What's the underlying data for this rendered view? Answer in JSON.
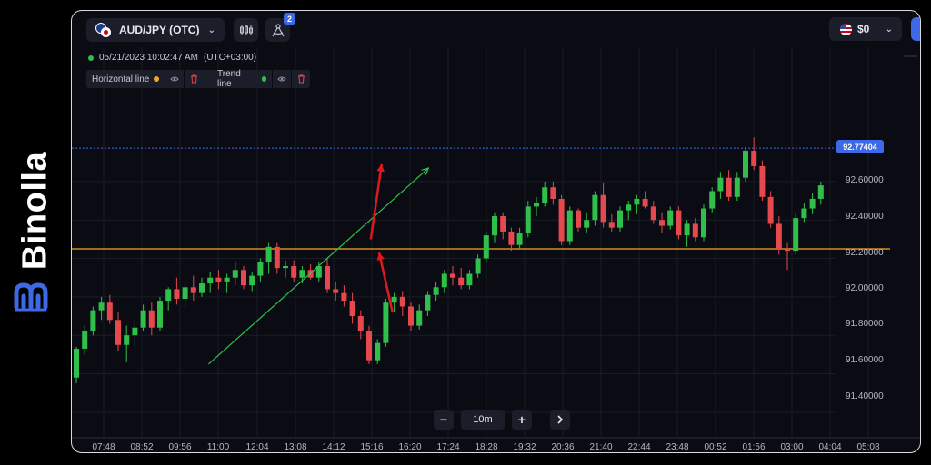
{
  "brand": {
    "name": "Binolla"
  },
  "toolbar": {
    "pair_label": "AUD/JPY (OTC)",
    "indicators_badge": "2",
    "balance": "$0"
  },
  "session": {
    "datetime": "05/21/2023 10:02:47 AM",
    "timezone": "(UTC+03:00)"
  },
  "drawings": [
    {
      "label": "Horizontal line",
      "color": "#f5a623"
    },
    {
      "label": "Trend line",
      "color": "#2fbf4a"
    }
  ],
  "price_axis": {
    "current_price": "92.77404",
    "ticks": [
      "92.60000",
      "92.40000",
      "92.20000",
      "92.00000",
      "91.80000",
      "91.60000",
      "91.40000"
    ]
  },
  "time_axis": {
    "ticks": [
      "07:48",
      "08:52",
      "09:56",
      "11:00",
      "12:04",
      "13:08",
      "14:12",
      "15:16",
      "16:20",
      "17:24",
      "18:28",
      "19:32",
      "20:36",
      "21:40",
      "22:44",
      "23:48",
      "00:52",
      "01:56",
      "03:00",
      "04:04",
      "05:08"
    ]
  },
  "zoom": {
    "interval": "10m"
  },
  "colors": {
    "bull": "#2fbf4a",
    "bear": "#e5484d",
    "horizontal_line": "#f5a623",
    "trend_line": "#2fbf4a",
    "arrow": "#e0191f",
    "accent": "#3d68e6"
  },
  "chart_data": {
    "type": "candlestick",
    "symbol": "AUD/JPY (OTC)",
    "interval": "10m",
    "ylim": [
      91.3,
      92.85
    ],
    "horizontal_line": 92.25,
    "current_price": 92.77404,
    "candles": [
      [
        91.58,
        91.74,
        91.55,
        91.73
      ],
      [
        91.73,
        91.85,
        91.7,
        91.82
      ],
      [
        91.82,
        91.95,
        91.8,
        91.93
      ],
      [
        91.93,
        92.0,
        91.88,
        91.97
      ],
      [
        91.97,
        92.01,
        91.86,
        91.88
      ],
      [
        91.88,
        91.92,
        91.72,
        91.75
      ],
      [
        91.75,
        91.85,
        91.66,
        91.8
      ],
      [
        91.8,
        91.88,
        91.74,
        91.84
      ],
      [
        91.84,
        91.96,
        91.82,
        91.93
      ],
      [
        91.93,
        91.97,
        91.8,
        91.84
      ],
      [
        91.84,
        92.0,
        91.82,
        91.98
      ],
      [
        91.98,
        92.05,
        91.93,
        92.04
      ],
      [
        92.04,
        92.1,
        91.96,
        91.99
      ],
      [
        91.99,
        92.08,
        91.94,
        92.05
      ],
      [
        92.05,
        92.11,
        91.98,
        92.02
      ],
      [
        92.02,
        92.1,
        92.0,
        92.07
      ],
      [
        92.07,
        92.13,
        92.02,
        92.1
      ],
      [
        92.1,
        92.14,
        92.04,
        92.08
      ],
      [
        92.08,
        92.12,
        92.02,
        92.1
      ],
      [
        92.1,
        92.18,
        92.06,
        92.14
      ],
      [
        92.14,
        92.16,
        92.04,
        92.06
      ],
      [
        92.06,
        92.13,
        92.03,
        92.11
      ],
      [
        92.11,
        92.2,
        92.08,
        92.18
      ],
      [
        92.18,
        92.28,
        92.12,
        92.26
      ],
      [
        92.26,
        92.28,
        92.12,
        92.15
      ],
      [
        92.15,
        92.19,
        92.1,
        92.16
      ],
      [
        92.16,
        92.19,
        92.08,
        92.1
      ],
      [
        92.1,
        92.16,
        92.07,
        92.14
      ],
      [
        92.14,
        92.17,
        92.09,
        92.1
      ],
      [
        92.1,
        92.18,
        92.08,
        92.16
      ],
      [
        92.16,
        92.2,
        92.02,
        92.04
      ],
      [
        92.04,
        92.08,
        91.98,
        92.02
      ],
      [
        92.02,
        92.06,
        91.95,
        91.98
      ],
      [
        91.98,
        92.02,
        91.86,
        91.9
      ],
      [
        91.9,
        91.93,
        91.78,
        91.82
      ],
      [
        91.82,
        91.85,
        91.65,
        91.67
      ],
      [
        91.67,
        91.78,
        91.65,
        91.76
      ],
      [
        91.76,
        91.99,
        91.74,
        91.97
      ],
      [
        91.97,
        92.02,
        91.92,
        92.0
      ],
      [
        92.0,
        92.03,
        91.9,
        91.95
      ],
      [
        91.95,
        91.97,
        91.82,
        91.85
      ],
      [
        91.85,
        91.96,
        91.83,
        91.93
      ],
      [
        91.93,
        92.03,
        91.9,
        92.01
      ],
      [
        92.01,
        92.08,
        91.98,
        92.05
      ],
      [
        92.05,
        92.14,
        92.02,
        92.12
      ],
      [
        92.12,
        92.16,
        92.06,
        92.1
      ],
      [
        92.1,
        92.15,
        92.04,
        92.06
      ],
      [
        92.06,
        92.14,
        92.04,
        92.12
      ],
      [
        92.12,
        92.22,
        92.1,
        92.2
      ],
      [
        92.2,
        92.34,
        92.18,
        92.32
      ],
      [
        92.32,
        92.44,
        92.28,
        92.42
      ],
      [
        92.42,
        92.44,
        92.3,
        92.34
      ],
      [
        92.34,
        92.36,
        92.24,
        92.27
      ],
      [
        92.27,
        92.36,
        92.25,
        92.33
      ],
      [
        92.33,
        92.5,
        92.31,
        92.47
      ],
      [
        92.47,
        92.52,
        92.42,
        92.49
      ],
      [
        92.49,
        92.6,
        92.47,
        92.57
      ],
      [
        92.57,
        92.6,
        92.48,
        92.51
      ],
      [
        92.51,
        92.53,
        92.27,
        92.29
      ],
      [
        92.29,
        92.47,
        92.27,
        92.45
      ],
      [
        92.45,
        92.46,
        92.34,
        92.36
      ],
      [
        92.36,
        92.44,
        92.33,
        92.4
      ],
      [
        92.4,
        92.55,
        92.37,
        92.53
      ],
      [
        92.53,
        92.59,
        92.36,
        92.39
      ],
      [
        92.39,
        92.43,
        92.34,
        92.36
      ],
      [
        92.36,
        92.47,
        92.34,
        92.45
      ],
      [
        92.45,
        92.5,
        92.4,
        92.48
      ],
      [
        92.48,
        92.53,
        92.43,
        92.51
      ],
      [
        92.51,
        92.55,
        92.46,
        92.47
      ],
      [
        92.47,
        92.5,
        92.38,
        92.4
      ],
      [
        92.4,
        92.44,
        92.33,
        92.37
      ],
      [
        92.37,
        92.47,
        92.35,
        92.45
      ],
      [
        92.45,
        92.47,
        92.3,
        92.32
      ],
      [
        92.32,
        92.4,
        92.26,
        92.38
      ],
      [
        92.38,
        92.41,
        92.29,
        92.31
      ],
      [
        92.31,
        92.48,
        92.29,
        92.46
      ],
      [
        92.46,
        92.57,
        92.44,
        92.55
      ],
      [
        92.55,
        92.65,
        92.51,
        92.62
      ],
      [
        92.62,
        92.66,
        92.5,
        92.52
      ],
      [
        92.52,
        92.65,
        92.5,
        92.62
      ],
      [
        92.62,
        92.78,
        92.6,
        92.76
      ],
      [
        92.76,
        92.83,
        92.66,
        92.68
      ],
      [
        92.68,
        92.71,
        92.5,
        92.52
      ],
      [
        92.52,
        92.55,
        92.36,
        92.38
      ],
      [
        92.38,
        92.42,
        92.22,
        92.25
      ],
      [
        92.25,
        92.28,
        92.14,
        92.24
      ],
      [
        92.24,
        92.44,
        92.22,
        92.41
      ],
      [
        92.41,
        92.49,
        92.39,
        92.46
      ],
      [
        92.46,
        92.54,
        92.43,
        92.51
      ],
      [
        92.51,
        92.6,
        92.48,
        92.58
      ]
    ],
    "trend_line": [
      [
        15.8,
        91.65
      ],
      [
        42.1,
        92.67
      ]
    ],
    "arrows": [
      {
        "from": [
          35.2,
          92.3
        ],
        "to": [
          36.5,
          92.69
        ]
      },
      {
        "from": [
          37.8,
          91.92
        ],
        "to": [
          36.2,
          92.23
        ]
      }
    ]
  }
}
